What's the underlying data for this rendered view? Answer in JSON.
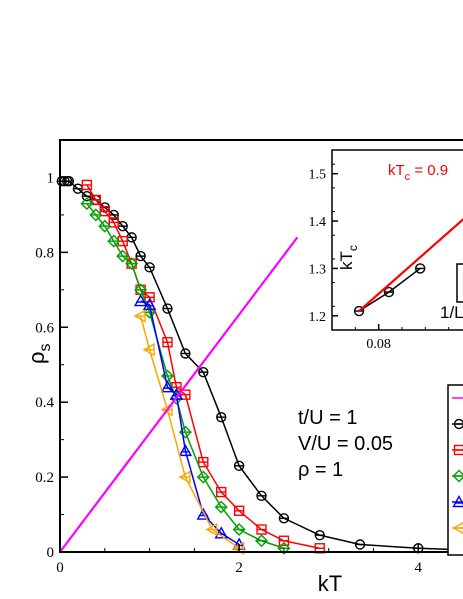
{
  "chart_data": [
    {
      "type": "line",
      "xlabel": "kT",
      "ylabel": "ρ",
      "ylabel_sub": "s",
      "xlim": [
        0,
        4.6
      ],
      "ylim": [
        0,
        1.1
      ],
      "xticks": [
        0,
        2,
        4
      ],
      "xtick_labels": [
        "0",
        "2",
        "4"
      ],
      "yticks": [
        0,
        0.2,
        0.4,
        0.6,
        0.8,
        1.0
      ],
      "ytick_labels": [
        "0",
        "0.2",
        "0.4",
        "0.6",
        "0.8",
        "1"
      ],
      "annotations": [
        "t/U = 1",
        "V/U = 0.05",
        "ρ = 1"
      ],
      "series": [
        {
          "color": "#000000",
          "marker": "circle",
          "x": [
            0.02,
            0.05,
            0.08,
            0.1,
            0.2,
            0.3,
            0.4,
            0.5,
            0.6,
            0.7,
            0.8,
            0.9,
            1.0,
            1.2,
            1.4,
            1.6,
            1.8,
            2.0,
            2.25,
            2.5,
            2.9,
            3.35,
            4.0,
            4.6
          ],
          "y": [
            0.99,
            0.99,
            0.99,
            0.99,
            0.97,
            0.95,
            0.94,
            0.92,
            0.9,
            0.87,
            0.84,
            0.79,
            0.76,
            0.65,
            0.53,
            0.48,
            0.36,
            0.23,
            0.15,
            0.09,
            0.045,
            0.02,
            0.01,
            0.005
          ]
        },
        {
          "color": "#ff0000",
          "marker": "square",
          "x": [
            0.3,
            0.4,
            0.5,
            0.6,
            0.7,
            0.8,
            0.9,
            1.0,
            1.2,
            1.3,
            1.4,
            1.6,
            1.8,
            2.0,
            2.25,
            2.5,
            2.9
          ],
          "y": [
            0.98,
            0.94,
            0.91,
            0.88,
            0.83,
            0.77,
            0.7,
            0.68,
            0.56,
            0.44,
            0.42,
            0.24,
            0.16,
            0.11,
            0.06,
            0.03,
            0.01
          ]
        },
        {
          "color": "#00a000",
          "marker": "diamond",
          "x": [
            0.3,
            0.4,
            0.5,
            0.6,
            0.7,
            0.8,
            0.9,
            1.0,
            1.2,
            1.3,
            1.4,
            1.6,
            1.8,
            2.0,
            2.25,
            2.5
          ],
          "y": [
            0.93,
            0.9,
            0.87,
            0.83,
            0.79,
            0.77,
            0.7,
            0.64,
            0.47,
            0.41,
            0.32,
            0.2,
            0.12,
            0.06,
            0.03,
            0.01
          ]
        },
        {
          "color": "#0000ff",
          "marker": "triangle-up",
          "x": [
            0.9,
            1.0,
            1.2,
            1.3,
            1.4,
            1.6,
            1.8,
            2.0
          ],
          "y": [
            0.67,
            0.66,
            0.44,
            0.42,
            0.27,
            0.1,
            0.05,
            0.02
          ]
        },
        {
          "color": "#ffa500",
          "marker": "triangle-left",
          "x": [
            0.9,
            1.0,
            1.2,
            1.4,
            1.7,
            2.0
          ],
          "y": [
            0.63,
            0.54,
            0.38,
            0.2,
            0.06,
            0.01
          ]
        },
        {
          "color": "#ff00ff",
          "marker": "none",
          "x": [
            0,
            2.65
          ],
          "y": [
            0,
            0.84
          ]
        }
      ]
    },
    {
      "type": "line",
      "inset": true,
      "title": "kT",
      "title_sub": "c",
      "title_rest": " = 0.9",
      "xlabel": "1/L",
      "ylabel": "kT",
      "ylabel_sub": "c",
      "xlim": [
        0.07,
        0.1
      ],
      "ylim": [
        1.17,
        1.55
      ],
      "xticks": [
        0.08,
        0.1
      ],
      "xtick_labels": [
        "0.08",
        "0."
      ],
      "yticks": [
        1.2,
        1.3,
        1.4,
        1.5
      ],
      "ytick_labels": [
        "1.2",
        "1.3",
        "1.4",
        "1.5"
      ],
      "series": [
        {
          "color": "#000000",
          "marker": "circle",
          "x": [
            0.0758,
            0.0822,
            0.0889
          ],
          "y": [
            1.21,
            1.25,
            1.3
          ]
        },
        {
          "color": "#ff0000",
          "marker": "none",
          "x": [
            0.0758,
            0.1
          ],
          "y": [
            1.21,
            1.42
          ]
        }
      ]
    }
  ]
}
